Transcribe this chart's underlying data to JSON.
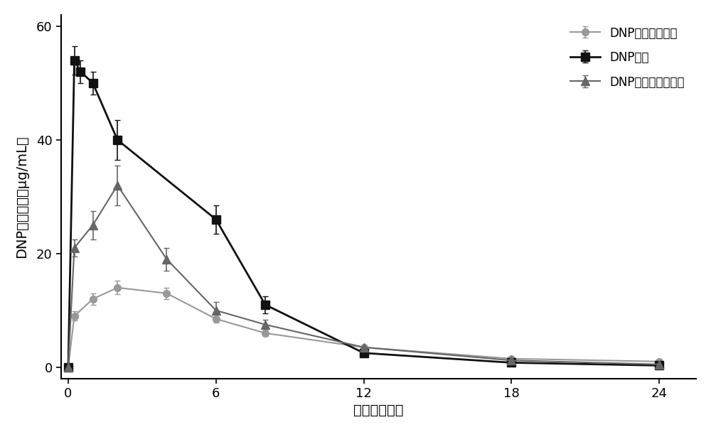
{
  "series": [
    {
      "label": "DNP磷脂司盘凝胶",
      "color": "#999999",
      "marker": "o",
      "markersize": 7,
      "linewidth": 1.5,
      "x": [
        0,
        0.25,
        1,
        2,
        4,
        6,
        8,
        12,
        18,
        24
      ],
      "y": [
        0,
        9.0,
        12.0,
        14.0,
        13.0,
        8.5,
        6.0,
        3.5,
        1.5,
        1.0
      ],
      "yerr": [
        0,
        0.8,
        1.0,
        1.2,
        1.0,
        0.7,
        0.5,
        0.3,
        0.2,
        0.15
      ]
    },
    {
      "label": "DNP溶液",
      "color": "#111111",
      "marker": "s",
      "markersize": 8,
      "linewidth": 2.0,
      "x": [
        0,
        0.25,
        0.5,
        1,
        2,
        6,
        8,
        12,
        18,
        24
      ],
      "y": [
        0,
        54.0,
        52.0,
        50.0,
        40.0,
        26.0,
        11.0,
        2.5,
        0.8,
        0.3
      ],
      "yerr": [
        0,
        2.5,
        2.0,
        2.0,
        3.5,
        2.5,
        1.5,
        0.4,
        0.15,
        0.05
      ]
    },
    {
      "label": "DNP高浓度磷脂凝胶",
      "color": "#666666",
      "marker": "^",
      "markersize": 8,
      "linewidth": 1.5,
      "x": [
        0,
        0.25,
        1,
        2,
        4,
        6,
        8,
        12,
        18,
        24
      ],
      "y": [
        0,
        21.0,
        25.0,
        32.0,
        19.0,
        10.0,
        7.5,
        3.5,
        1.2,
        0.5
      ],
      "yerr": [
        0,
        1.5,
        2.5,
        3.5,
        2.0,
        1.5,
        0.8,
        0.4,
        0.2,
        0.1
      ]
    }
  ],
  "xlabel": "时间（小时）",
  "ylabel": "DNP血浆浓度（μg/mL）",
  "xlim": [
    -0.3,
    25.5
  ],
  "ylim": [
    -2,
    62
  ],
  "xticks": [
    0,
    6,
    12,
    18,
    24
  ],
  "yticks": [
    0,
    20,
    40,
    60
  ],
  "legend_loc": "upper right",
  "background_color": "#ffffff",
  "font_size": 14,
  "label_fontsize": 14,
  "tick_fontsize": 13
}
